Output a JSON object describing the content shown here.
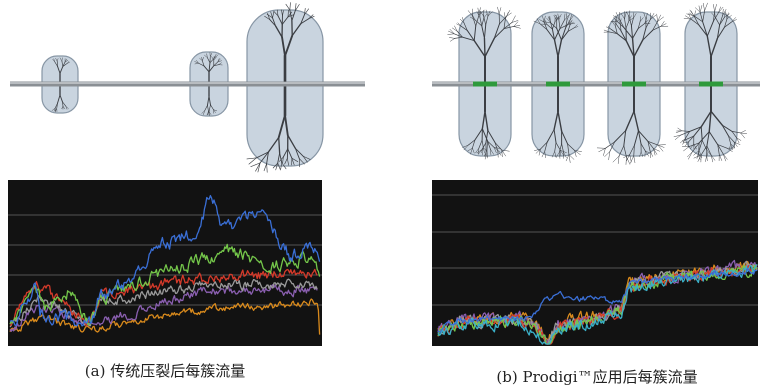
{
  "panels": [
    {
      "caption": "(a) 传统压裂后每簇流量"
    },
    {
      "caption": "(b) Prodigi™应用后每簇流量"
    }
  ]
}
